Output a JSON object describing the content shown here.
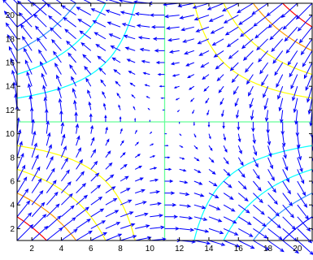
{
  "chart_data": {
    "type": "quiver-contour",
    "title": "",
    "xlabel": "",
    "ylabel": "",
    "xlim": [
      1,
      21
    ],
    "ylim": [
      1,
      21
    ],
    "x_ticks": [
      2,
      4,
      6,
      8,
      10,
      12,
      14,
      16,
      18,
      20
    ],
    "y_ticks": [
      2,
      4,
      6,
      8,
      10,
      12,
      14,
      16,
      18,
      20
    ],
    "grid": false,
    "field": {
      "center": [
        11,
        11
      ],
      "grid_range": [
        1,
        21
      ],
      "grid_step": 1,
      "vector_rule": "u = -(y - 11), v = -(x - 11)",
      "arrow_color": "#0000ff"
    },
    "contours": [
      {
        "level": 0,
        "color": "#66ff99"
      },
      {
        "level": 20,
        "color": "#ffff00"
      },
      {
        "level": 40,
        "color": "#ffff00"
      },
      {
        "level": -20,
        "color": "#00ffff"
      },
      {
        "level": -40,
        "color": "#00ffff"
      },
      {
        "level": 60,
        "color": "#ff9900"
      },
      {
        "level": 80,
        "color": "#ff0000"
      },
      {
        "level": -60,
        "color": "#3399ff"
      },
      {
        "level": -80,
        "color": "#0000ff"
      }
    ],
    "contour_rule": "f = (x - 11) * (y - 11)",
    "colors": {
      "axes": "#000000",
      "background": "#ffffff"
    }
  }
}
